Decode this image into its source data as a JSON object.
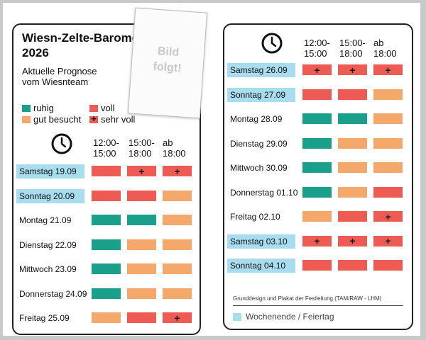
{
  "title": "Wiesn-Zelte-Barometer 2026",
  "subtitle_line1": "Aktuelle Prognose",
  "subtitle_line2": "vom Wiesnteam",
  "colors": {
    "ruhig": "#1aa08a",
    "gut_besucht": "#f5a86b",
    "voll": "#ee5b54",
    "sehr_voll": "#ee5b54",
    "wochenende": "#a8ddf0"
  },
  "legend": {
    "ruhig": "ruhig",
    "voll": "voll",
    "gut_besucht": "gut besucht",
    "sehr_voll": "sehr voll",
    "plus_symbol": "+"
  },
  "icons": {
    "clock": "clock-icon"
  },
  "columns": [
    {
      "line1": "12:00-",
      "line2": "15:00"
    },
    {
      "line1": "15:00-",
      "line2": "18:00"
    },
    {
      "line1": "ab",
      "line2": "18:00"
    }
  ],
  "sticky_note": {
    "line1": "Bild",
    "line2": "folgt!"
  },
  "left_days": [
    {
      "label": "Samstag 19.09",
      "weekend": true,
      "levels": [
        "voll",
        "sehr_voll",
        "sehr_voll"
      ]
    },
    {
      "label": "Sonntag 20.09",
      "weekend": true,
      "levels": [
        "voll",
        "voll",
        "gut_besucht"
      ]
    },
    {
      "label": "Montag 21.09",
      "weekend": false,
      "levels": [
        "ruhig",
        "ruhig",
        "gut_besucht"
      ]
    },
    {
      "label": "Dienstag 22.09",
      "weekend": false,
      "levels": [
        "ruhig",
        "gut_besucht",
        "gut_besucht"
      ]
    },
    {
      "label": "Mittwoch 23.09",
      "weekend": false,
      "levels": [
        "ruhig",
        "gut_besucht",
        "gut_besucht"
      ]
    },
    {
      "label": "Donnerstag 24.09",
      "weekend": false,
      "levels": [
        "ruhig",
        "gut_besucht",
        "gut_besucht"
      ]
    },
    {
      "label": "Freitag 25.09",
      "weekend": false,
      "levels": [
        "gut_besucht",
        "voll",
        "sehr_voll"
      ]
    }
  ],
  "right_days": [
    {
      "label": "Samstag 26.09",
      "weekend": true,
      "levels": [
        "sehr_voll",
        "sehr_voll",
        "sehr_voll"
      ]
    },
    {
      "label": "Sonntag 27.09",
      "weekend": true,
      "levels": [
        "voll",
        "voll",
        "gut_besucht"
      ]
    },
    {
      "label": "Montag 28.09",
      "weekend": false,
      "levels": [
        "ruhig",
        "ruhig",
        "gut_besucht"
      ]
    },
    {
      "label": "Dienstag 29.09",
      "weekend": false,
      "levels": [
        "ruhig",
        "gut_besucht",
        "gut_besucht"
      ]
    },
    {
      "label": "Mittwoch 30.09",
      "weekend": false,
      "levels": [
        "ruhig",
        "gut_besucht",
        "gut_besucht"
      ]
    },
    {
      "label": "Donnerstag 01.10",
      "weekend": false,
      "levels": [
        "ruhig",
        "gut_besucht",
        "voll"
      ]
    },
    {
      "label": "Freitag 02.10",
      "weekend": false,
      "levels": [
        "gut_besucht",
        "voll",
        "sehr_voll"
      ]
    },
    {
      "label": "Samstag 03.10",
      "weekend": true,
      "levels": [
        "sehr_voll",
        "sehr_voll",
        "sehr_voll"
      ]
    },
    {
      "label": "Sonntag 04.10",
      "weekend": true,
      "levels": [
        "voll",
        "voll",
        "voll"
      ]
    }
  ],
  "footer": {
    "credit": "Grunddesign und Plakat der Festleitung (TAM/RAW - LHM)",
    "legend_label": "Wochenende / Feiertag"
  }
}
